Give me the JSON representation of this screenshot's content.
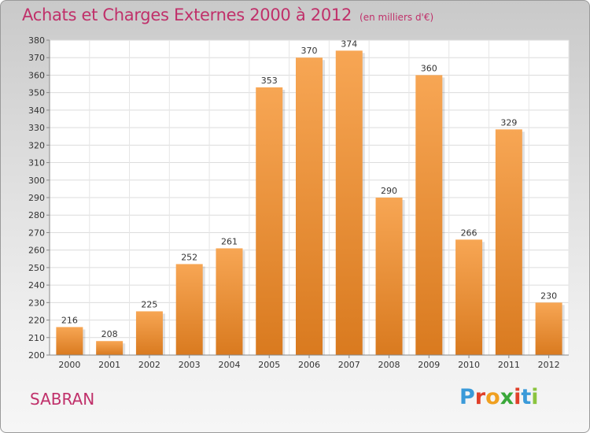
{
  "header": {
    "title": "Achats et Charges Externes 2000 à 2012",
    "unit": "(en milliers d'€)"
  },
  "footer": {
    "commune": "SABRAN",
    "logo_text": "Proxiti"
  },
  "colors": {
    "title": "#c0306a",
    "bar_light": "#f7a654",
    "bar_dark": "#d97a1f",
    "logo_letters": [
      "#3a9ad9",
      "#e0402a",
      "#f0a020",
      "#3aa83a",
      "#e0402a",
      "#3a9ad9",
      "#8bc43f"
    ]
  },
  "chart_data": {
    "type": "bar",
    "categories": [
      "2000",
      "2001",
      "2002",
      "2003",
      "2004",
      "2005",
      "2006",
      "2007",
      "2008",
      "2009",
      "2010",
      "2011",
      "2012"
    ],
    "values": [
      216,
      208,
      225,
      252,
      261,
      353,
      370,
      374,
      290,
      360,
      266,
      329,
      230
    ],
    "title": "Achats et Charges Externes 2000 à 2012",
    "subtitle": "(en milliers d'€)",
    "xlabel": "",
    "ylabel": "",
    "ylim": [
      200,
      380
    ],
    "ytick_step": 10,
    "grid": true
  }
}
